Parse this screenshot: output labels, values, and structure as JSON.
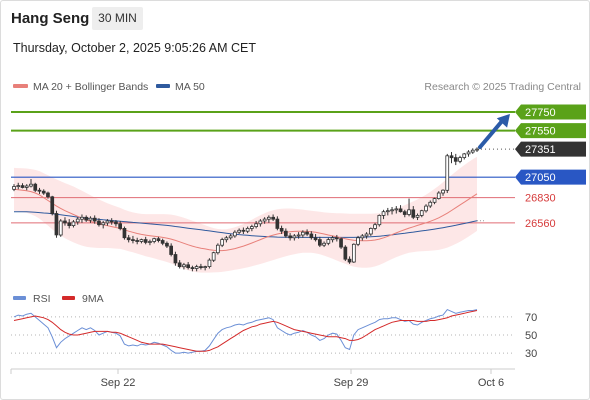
{
  "header": {
    "instrument": "Hang Seng",
    "timeframe": "30 MIN",
    "timestamp": "Thursday, October 2, 2025 9:05:26 AM CET"
  },
  "legend": {
    "ma20": "MA 20 + Bollinger Bands",
    "ma50": "MA 50",
    "credit": "Research © 2025 Trading Central"
  },
  "rsi_legend": {
    "rsi": "RSI",
    "ma9": "9MA"
  },
  "colors": {
    "ma20": "#e8807a",
    "ma50": "#2f5a9e",
    "band_fill": "#fde3e3",
    "resistance": "#5aa219",
    "pivot": "#2957c4",
    "support": "#e06c74",
    "candle": "#333333",
    "rsi": "#6b8fd6",
    "rsi_ma": "#d42a2a",
    "current_price": "#333333",
    "arrow": "#2b5ba8"
  },
  "chart_data": [
    {
      "type": "line",
      "title": "",
      "x_ticks": [
        "Sep 22",
        "Sep 29",
        "Oct 6"
      ],
      "ylim": [
        25850,
        28050
      ],
      "levels": [
        {
          "label": "27750",
          "value": 27750,
          "kind": "resistance"
        },
        {
          "label": "27550",
          "value": 27550,
          "kind": "resistance"
        },
        {
          "label": "27351",
          "value": 27351,
          "kind": "current"
        },
        {
          "label": "27050",
          "value": 27050,
          "kind": "pivot"
        },
        {
          "label": "26830",
          "value": 26830,
          "kind": "support"
        },
        {
          "label": "26560",
          "value": 26560,
          "kind": "support"
        }
      ],
      "candles": [
        [
          26920,
          26975,
          26900,
          26950
        ],
        [
          26950,
          26990,
          26920,
          26960
        ],
        [
          26960,
          26985,
          26930,
          26940
        ],
        [
          26940,
          26975,
          26910,
          26955
        ],
        [
          26955,
          27030,
          26940,
          26975
        ],
        [
          26975,
          26990,
          26890,
          26910
        ],
        [
          26910,
          26935,
          26870,
          26900
        ],
        [
          26900,
          26920,
          26860,
          26880
        ],
        [
          26880,
          26895,
          26820,
          26840
        ],
        [
          26840,
          26850,
          26640,
          26660
        ],
        [
          26660,
          26690,
          26400,
          26430
        ],
        [
          26430,
          26600,
          26410,
          26580
        ],
        [
          26580,
          26620,
          26530,
          26560
        ],
        [
          26560,
          26600,
          26500,
          26530
        ],
        [
          26530,
          26590,
          26510,
          26570
        ],
        [
          26570,
          26620,
          26540,
          26600
        ],
        [
          26600,
          26650,
          26560,
          26620
        ],
        [
          26620,
          26640,
          26570,
          26590
        ],
        [
          26590,
          26630,
          26560,
          26610
        ],
        [
          26610,
          26640,
          26550,
          26580
        ],
        [
          26580,
          26610,
          26520,
          26540
        ],
        [
          26540,
          26580,
          26500,
          26560
        ],
        [
          26560,
          26600,
          26530,
          26580
        ],
        [
          26580,
          26610,
          26540,
          26570
        ],
        [
          26570,
          26590,
          26520,
          26550
        ],
        [
          26550,
          26580,
          26480,
          26500
        ],
        [
          26500,
          26520,
          26380,
          26400
        ],
        [
          26400,
          26430,
          26350,
          26380
        ],
        [
          26380,
          26420,
          26340,
          26370
        ],
        [
          26370,
          26400,
          26330,
          26360
        ],
        [
          26360,
          26390,
          26340,
          26380
        ],
        [
          26380,
          26410,
          26330,
          26350
        ],
        [
          26350,
          26380,
          26320,
          26360
        ],
        [
          26360,
          26400,
          26340,
          26390
        ],
        [
          26390,
          26410,
          26350,
          26370
        ],
        [
          26370,
          26390,
          26320,
          26340
        ],
        [
          26340,
          26360,
          26290,
          26310
        ],
        [
          26310,
          26340,
          26200,
          26220
        ],
        [
          26220,
          26250,
          26100,
          26130
        ],
        [
          26130,
          26160,
          26070,
          26090
        ],
        [
          26090,
          26130,
          26060,
          26110
        ],
        [
          26110,
          26140,
          26060,
          26080
        ],
        [
          26080,
          26100,
          26040,
          26070
        ],
        [
          26070,
          26110,
          26040,
          26090
        ],
        [
          26090,
          26120,
          26060,
          26080
        ],
        [
          26080,
          26100,
          26050,
          26090
        ],
        [
          26090,
          26180,
          26070,
          26160
        ],
        [
          26160,
          26250,
          26140,
          26240
        ],
        [
          26240,
          26340,
          26220,
          26320
        ],
        [
          26320,
          26400,
          26300,
          26380
        ],
        [
          26380,
          26420,
          26350,
          26400
        ],
        [
          26400,
          26440,
          26380,
          26420
        ],
        [
          26420,
          26480,
          26400,
          26460
        ],
        [
          26460,
          26500,
          26440,
          26480
        ],
        [
          26480,
          26510,
          26440,
          26470
        ],
        [
          26470,
          26520,
          26450,
          26500
        ],
        [
          26500,
          26540,
          26470,
          26520
        ],
        [
          26520,
          26580,
          26500,
          26550
        ],
        [
          26550,
          26600,
          26520,
          26580
        ],
        [
          26580,
          26620,
          26550,
          26600
        ],
        [
          26600,
          26640,
          26560,
          26620
        ],
        [
          26620,
          26650,
          26580,
          26600
        ],
        [
          26600,
          26630,
          26480,
          26500
        ],
        [
          26500,
          26530,
          26440,
          26470
        ],
        [
          26470,
          26500,
          26400,
          26420
        ],
        [
          26420,
          26450,
          26370,
          26400
        ],
        [
          26400,
          26440,
          26370,
          26420
        ],
        [
          26420,
          26460,
          26390,
          26430
        ],
        [
          26430,
          26480,
          26400,
          26460
        ],
        [
          26460,
          26490,
          26420,
          26440
        ],
        [
          26440,
          26470,
          26380,
          26400
        ],
        [
          26400,
          26440,
          26360,
          26380
        ],
        [
          26380,
          26410,
          26300,
          26320
        ],
        [
          26320,
          26360,
          26300,
          26340
        ],
        [
          26340,
          26400,
          26320,
          26380
        ],
        [
          26380,
          26420,
          26350,
          26400
        ],
        [
          26400,
          26430,
          26360,
          26390
        ],
        [
          26390,
          26400,
          26280,
          26300
        ],
        [
          26300,
          26320,
          26150,
          26170
        ],
        [
          26170,
          26200,
          26120,
          26140
        ],
        [
          26140,
          26340,
          26130,
          26330
        ],
        [
          26330,
          26420,
          26310,
          26400
        ],
        [
          26400,
          26440,
          26370,
          26420
        ],
        [
          26420,
          26460,
          26390,
          26440
        ],
        [
          26440,
          26510,
          26420,
          26500
        ],
        [
          26500,
          26560,
          26480,
          26540
        ],
        [
          26540,
          26650,
          26520,
          26640
        ],
        [
          26640,
          26700,
          26600,
          26680
        ],
        [
          26680,
          26720,
          26640,
          26690
        ],
        [
          26690,
          26730,
          26650,
          26700
        ],
        [
          26700,
          26740,
          26660,
          26710
        ],
        [
          26710,
          26750,
          26670,
          26680
        ],
        [
          26680,
          26700,
          26620,
          26650
        ],
        [
          26650,
          26820,
          26630,
          26700
        ],
        [
          26700,
          26740,
          26600,
          26620
        ],
        [
          26620,
          26660,
          26590,
          26640
        ],
        [
          26640,
          26700,
          26620,
          26690
        ],
        [
          26690,
          26760,
          26670,
          26740
        ],
        [
          26740,
          26800,
          26720,
          26780
        ],
        [
          26780,
          26830,
          26760,
          26820
        ],
        [
          26820,
          26900,
          26810,
          26880
        ],
        [
          26880,
          26920,
          26850,
          26910
        ],
        [
          26910,
          27300,
          26880,
          27280
        ],
        [
          27280,
          27320,
          27200,
          27260
        ],
        [
          27260,
          27300,
          27180,
          27220
        ],
        [
          27220,
          27280,
          27200,
          27260
        ],
        [
          27260,
          27310,
          27240,
          27300
        ],
        [
          27300,
          27340,
          27270,
          27320
        ],
        [
          27320,
          27360,
          27300,
          27340
        ],
        [
          27340,
          27370,
          27320,
          27351
        ]
      ],
      "ma20": [
        26920,
        26915,
        26910,
        26905,
        26895,
        26880,
        26860,
        26830,
        26800,
        26770,
        26740,
        26715,
        26690,
        26670,
        26650,
        26630,
        26610,
        26592,
        26576,
        26562,
        26550,
        26540,
        26530,
        26520,
        26510,
        26500,
        26485,
        26470,
        26458,
        26446,
        26436,
        26428,
        26422,
        26416,
        26410,
        26404,
        26396,
        26386,
        26372,
        26356,
        26340,
        26324,
        26310,
        26298,
        26288,
        26280,
        26272,
        26266,
        26262,
        26262,
        26266,
        26274,
        26284,
        26296,
        26310,
        26326,
        26344,
        26362,
        26380,
        26398,
        26414,
        26428,
        26440,
        26450,
        26458,
        26464,
        26468,
        26470,
        26470,
        26468,
        26464,
        26458,
        26450,
        26440,
        26430,
        26420,
        26410,
        26400,
        26390,
        26380,
        26374,
        26370,
        26368,
        26368,
        26370,
        26376,
        26386,
        26400,
        26416,
        26434,
        26452,
        26470,
        26488,
        26504,
        26518,
        26532,
        26546,
        26560,
        26576,
        26594,
        26614,
        26638,
        26664,
        26692,
        26722,
        26752,
        26782,
        26812,
        26842,
        26872
      ],
      "ma50": [
        26680,
        26680,
        26679,
        26678,
        26676,
        26673,
        26670,
        26666,
        26662,
        26657,
        26652,
        26646,
        26640,
        26634,
        26628,
        26622,
        26616,
        26611,
        26606,
        26601,
        26597,
        26593,
        26589,
        26585,
        26581,
        26577,
        26573,
        26569,
        26565,
        26561,
        26557,
        26553,
        26549,
        26545,
        26541,
        26537,
        26532,
        26527,
        26521,
        26515,
        26509,
        26503,
        26497,
        26491,
        26485,
        26479,
        26473,
        26467,
        26461,
        26455,
        26449,
        26444,
        26439,
        26434,
        26430,
        26426,
        26422,
        26419,
        26416,
        26413,
        26411,
        26409,
        26407,
        26406,
        26405,
        26404,
        26404,
        26404,
        26404,
        26404,
        26404,
        26404,
        26404,
        26404,
        26404,
        26404,
        26404,
        26404,
        26404,
        26404,
        26404,
        26405,
        26406,
        26408,
        26410,
        26413,
        26417,
        26421,
        26426,
        26431,
        26437,
        26443,
        26449,
        26455,
        26461,
        26467,
        26473,
        26479,
        26486,
        26493,
        26500,
        26508,
        26516,
        26525,
        26534,
        26543,
        26553,
        26563,
        26573,
        26583
      ],
      "bb_width": [
        230,
        232,
        235,
        238,
        242,
        248,
        255,
        262,
        270,
        278,
        286,
        292,
        296,
        298,
        300,
        298,
        294,
        288,
        280,
        270,
        260,
        250,
        240,
        232,
        226,
        220,
        216,
        214,
        214,
        216,
        220,
        226,
        232,
        238,
        244,
        250,
        256,
        262,
        268,
        272,
        274,
        274,
        272,
        268,
        262,
        254,
        246,
        238,
        232,
        228,
        226,
        226,
        228,
        232,
        238,
        244,
        250,
        256,
        262,
        266,
        268,
        268,
        266,
        262,
        256,
        250,
        244,
        238,
        232,
        228,
        226,
        226,
        228,
        232,
        238,
        246,
        254,
        262,
        270,
        278,
        284,
        288,
        290,
        290,
        288,
        284,
        278,
        272,
        266,
        262,
        260,
        260,
        262,
        266,
        272,
        280,
        290,
        302,
        316,
        330,
        344,
        358,
        370,
        380,
        388,
        394,
        398,
        400,
        400,
        398
      ]
    },
    {
      "type": "line",
      "title": "",
      "y_ticks": [
        70,
        50,
        30
      ],
      "ylim": [
        18,
        82
      ],
      "series": [
        {
          "name": "RSI",
          "values": [
            70,
            72,
            71,
            73,
            74,
            70,
            66,
            62,
            58,
            48,
            36,
            42,
            46,
            49,
            52,
            55,
            58,
            56,
            58,
            55,
            50,
            52,
            54,
            53,
            52,
            49,
            40,
            38,
            39,
            38,
            40,
            39,
            40,
            42,
            41,
            39,
            37,
            33,
            30,
            30,
            31,
            30,
            31,
            32,
            32,
            33,
            38,
            45,
            52,
            56,
            58,
            59,
            61,
            62,
            61,
            63,
            64,
            66,
            67,
            68,
            69,
            67,
            58,
            55,
            52,
            50,
            52,
            53,
            55,
            53,
            50,
            48,
            44,
            46,
            50,
            52,
            51,
            44,
            36,
            34,
            50,
            56,
            58,
            60,
            62,
            64,
            67,
            68,
            68,
            69,
            69,
            67,
            65,
            66,
            62,
            61,
            64,
            66,
            68,
            69,
            71,
            72,
            78,
            76,
            74,
            75,
            76,
            77,
            77,
            78
          ]
        },
        {
          "name": "9MA",
          "values": [
            66,
            67,
            68,
            69,
            70,
            71,
            70,
            69,
            67,
            64,
            60,
            56,
            53,
            51,
            50,
            50,
            51,
            52,
            53,
            54,
            54,
            54,
            54,
            53,
            53,
            52,
            50,
            48,
            46,
            44,
            42,
            41,
            40,
            40,
            40,
            40,
            39,
            38,
            37,
            36,
            35,
            34,
            33,
            32,
            32,
            32,
            33,
            35,
            37,
            40,
            43,
            46,
            49,
            52,
            55,
            57,
            59,
            60,
            62,
            63,
            64,
            65,
            64,
            62,
            60,
            58,
            56,
            55,
            54,
            53,
            52,
            51,
            50,
            49,
            48,
            48,
            48,
            47,
            46,
            44,
            44,
            45,
            47,
            50,
            53,
            56,
            58,
            60,
            62,
            64,
            65,
            66,
            66,
            66,
            66,
            65,
            65,
            65,
            66,
            66,
            67,
            68,
            69,
            71,
            72,
            73,
            74,
            75,
            76,
            77
          ]
        }
      ]
    }
  ]
}
